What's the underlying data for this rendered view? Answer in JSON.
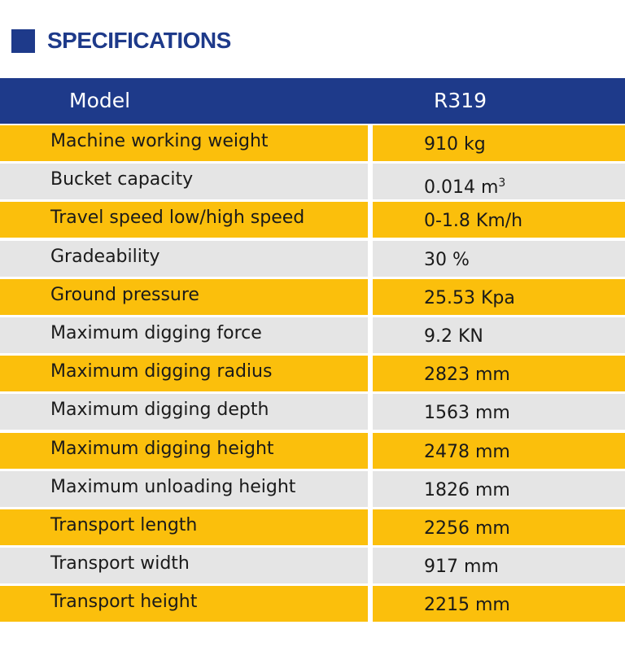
{
  "header": {
    "title": "SPECIFICATIONS"
  },
  "table": {
    "columns": [
      "Model",
      "R319"
    ],
    "rows": [
      {
        "label": "Machine working weight",
        "value": "910 kg"
      },
      {
        "label": "Bucket capacity",
        "value": "0.014 m",
        "sup": "3"
      },
      {
        "label": "Travel speed low/high speed",
        "value": "0-1.8 Km/h"
      },
      {
        "label": "Gradeability",
        "value": "30 %"
      },
      {
        "label": "Ground pressure",
        "value": "25.53 Kpa"
      },
      {
        "label": "Maximum digging force",
        "value": "9.2 KN"
      },
      {
        "label": "Maximum digging radius",
        "value": "2823 mm"
      },
      {
        "label": "Maximum digging depth",
        "value": "1563 mm"
      },
      {
        "label": "Maximum digging height",
        "value": "2478 mm"
      },
      {
        "label": "Maximum unloading height",
        "value": "1826 mm"
      },
      {
        "label": "Transport length",
        "value": "2256 mm"
      },
      {
        "label": "Transport width",
        "value": "917 mm"
      },
      {
        "label": "Transport height",
        "value": "2215 mm"
      }
    ]
  },
  "colors": {
    "navy": "#1e3a8a",
    "yellow": "#fbbf0c",
    "gray": "#e5e5e5"
  }
}
